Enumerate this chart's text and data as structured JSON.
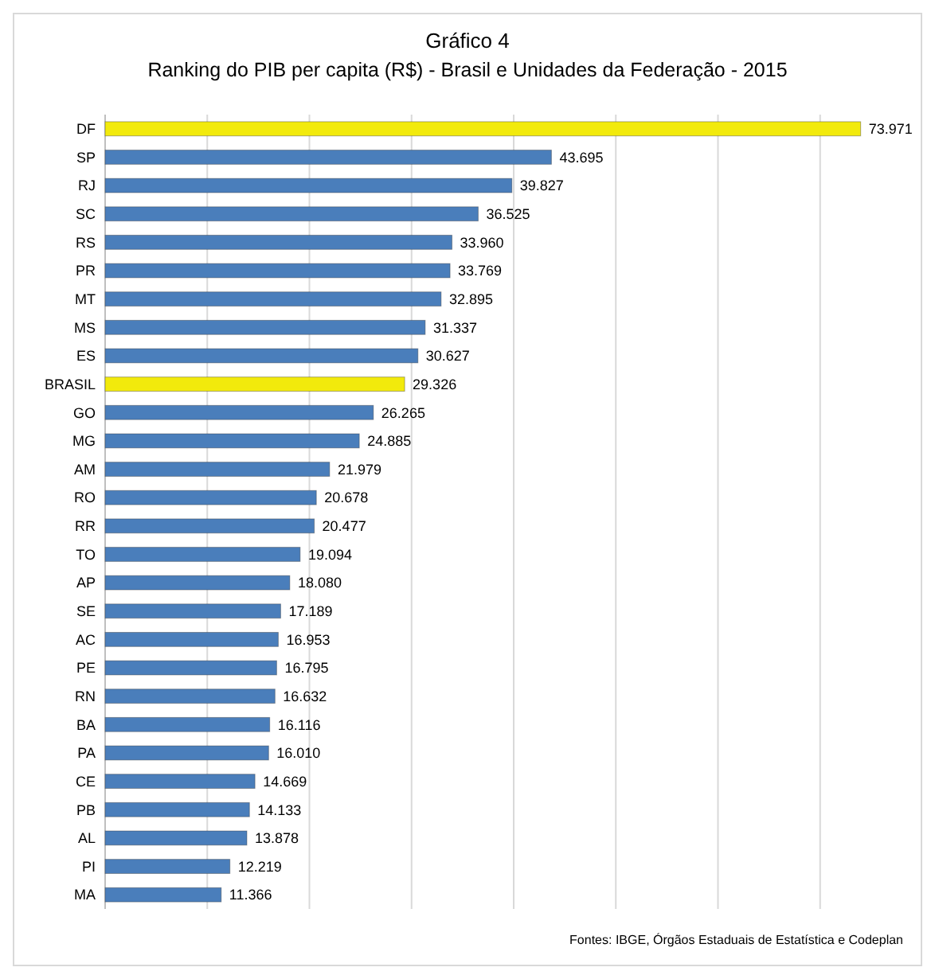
{
  "chart_data": {
    "type": "bar",
    "orientation": "horizontal",
    "title": "Gráfico 4",
    "subtitle": "Ranking do PIB per capita (R$) - Brasil e Unidades da Federação - 2015",
    "categories": [
      "DF",
      "SP",
      "RJ",
      "SC",
      "RS",
      "PR",
      "MT",
      "MS",
      "ES",
      "BRASIL",
      "GO",
      "MG",
      "AM",
      "RO",
      "RR",
      "TO",
      "AP",
      "SE",
      "AC",
      "PE",
      "RN",
      "BA",
      "PA",
      "CE",
      "PB",
      "AL",
      "PI",
      "MA"
    ],
    "values": [
      73971,
      43695,
      39827,
      36525,
      33960,
      33769,
      32895,
      31337,
      30627,
      29326,
      26265,
      24885,
      21979,
      20678,
      20477,
      19094,
      18080,
      17189,
      16953,
      16795,
      16632,
      16116,
      16010,
      14669,
      14133,
      13878,
      12219,
      11366
    ],
    "value_labels": [
      "73.971",
      "43.695",
      "39.827",
      "36.525",
      "33.960",
      "33.769",
      "32.895",
      "31.337",
      "30.627",
      "29.326",
      "26.265",
      "24.885",
      "21.979",
      "20.678",
      "20.477",
      "19.094",
      "18.080",
      "17.189",
      "16.953",
      "16.795",
      "16.632",
      "16.116",
      "16.010",
      "14.669",
      "14.133",
      "13.878",
      "12.219",
      "11.366"
    ],
    "colors": [
      "#f2ea0c",
      "#4a7ebb",
      "#4a7ebb",
      "#4a7ebb",
      "#4a7ebb",
      "#4a7ebb",
      "#4a7ebb",
      "#4a7ebb",
      "#4a7ebb",
      "#f2ea0c",
      "#4a7ebb",
      "#4a7ebb",
      "#4a7ebb",
      "#4a7ebb",
      "#4a7ebb",
      "#4a7ebb",
      "#4a7ebb",
      "#4a7ebb",
      "#4a7ebb",
      "#4a7ebb",
      "#4a7ebb",
      "#4a7ebb",
      "#4a7ebb",
      "#4a7ebb",
      "#4a7ebb",
      "#4a7ebb",
      "#4a7ebb",
      "#4a7ebb"
    ],
    "xlim": [
      0,
      80000
    ],
    "xticks": [
      {
        "value": 0,
        "label": null
      },
      {
        "value": 10000,
        "label": null
      },
      {
        "value": 20000,
        "label": null
      },
      {
        "value": 30000,
        "label": null
      },
      {
        "value": 40000,
        "label": null
      },
      {
        "value": 50000,
        "label": null
      },
      {
        "value": 60000,
        "label": null
      },
      {
        "value": 70000,
        "label": null
      },
      {
        "value": 80000,
        "label": null
      }
    ],
    "grid": "x",
    "tick_labels": "y",
    "annotations": [
      "Fontes: IBGE, Órgãos Estaduais de Estatística e Codeplan"
    ]
  }
}
